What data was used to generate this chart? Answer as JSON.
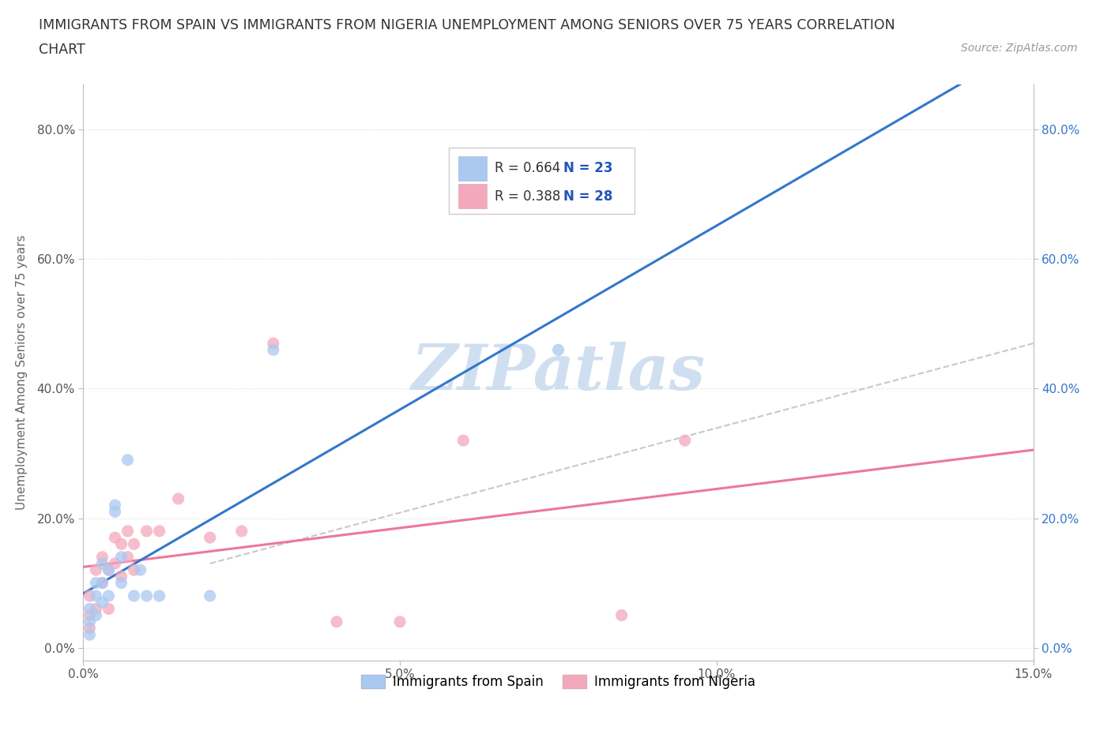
{
  "title_line1": "IMMIGRANTS FROM SPAIN VS IMMIGRANTS FROM NIGERIA UNEMPLOYMENT AMONG SENIORS OVER 75 YEARS CORRELATION",
  "title_line2": "CHART",
  "source_text": "Source: ZipAtlas.com",
  "ylabel": "Unemployment Among Seniors over 75 years",
  "xmin": 0.0,
  "xmax": 0.15,
  "ymin": -0.02,
  "ymax": 0.87,
  "yticks": [
    0.0,
    0.2,
    0.4,
    0.6,
    0.8
  ],
  "ytick_labels": [
    "0.0%",
    "20.0%",
    "40.0%",
    "60.0%",
    "80.0%"
  ],
  "xticks": [
    0.0,
    0.05,
    0.1,
    0.15
  ],
  "xtick_labels": [
    "0.0%",
    "5.0%",
    "10.0%",
    "15.0%"
  ],
  "spain_color": "#aac8f0",
  "nigeria_color": "#f4a8bc",
  "spain_line_color": "#3377cc",
  "nigeria_line_color": "#ee7799",
  "watermark_color": "#d0dff0",
  "R_spain": 0.664,
  "N_spain": 23,
  "R_nigeria": 0.388,
  "N_nigeria": 28,
  "legend_label_spain": "Immigrants from Spain",
  "legend_label_nigeria": "Immigrants from Nigeria",
  "spain_x": [
    0.001,
    0.001,
    0.001,
    0.002,
    0.002,
    0.002,
    0.003,
    0.003,
    0.003,
    0.004,
    0.004,
    0.005,
    0.005,
    0.006,
    0.006,
    0.007,
    0.008,
    0.009,
    0.01,
    0.012,
    0.02,
    0.03,
    0.075
  ],
  "spain_y": [
    0.02,
    0.04,
    0.06,
    0.05,
    0.08,
    0.1,
    0.07,
    0.1,
    0.13,
    0.08,
    0.12,
    0.21,
    0.22,
    0.1,
    0.14,
    0.29,
    0.08,
    0.12,
    0.08,
    0.08,
    0.08,
    0.46,
    0.46
  ],
  "nigeria_x": [
    0.001,
    0.001,
    0.001,
    0.002,
    0.002,
    0.003,
    0.003,
    0.004,
    0.004,
    0.005,
    0.005,
    0.006,
    0.006,
    0.007,
    0.007,
    0.008,
    0.008,
    0.01,
    0.012,
    0.015,
    0.02,
    0.025,
    0.03,
    0.04,
    0.05,
    0.06,
    0.085,
    0.095
  ],
  "nigeria_y": [
    0.03,
    0.05,
    0.08,
    0.06,
    0.12,
    0.1,
    0.14,
    0.06,
    0.12,
    0.13,
    0.17,
    0.11,
    0.16,
    0.14,
    0.18,
    0.12,
    0.16,
    0.18,
    0.18,
    0.23,
    0.17,
    0.18,
    0.47,
    0.04,
    0.04,
    0.32,
    0.05,
    0.32
  ],
  "background_color": "#ffffff",
  "grid_color": "#dddddd",
  "title_fontsize": 12.5,
  "axis_label_fontsize": 11,
  "tick_fontsize": 11,
  "legend_fontsize": 12,
  "marker_size": 120
}
